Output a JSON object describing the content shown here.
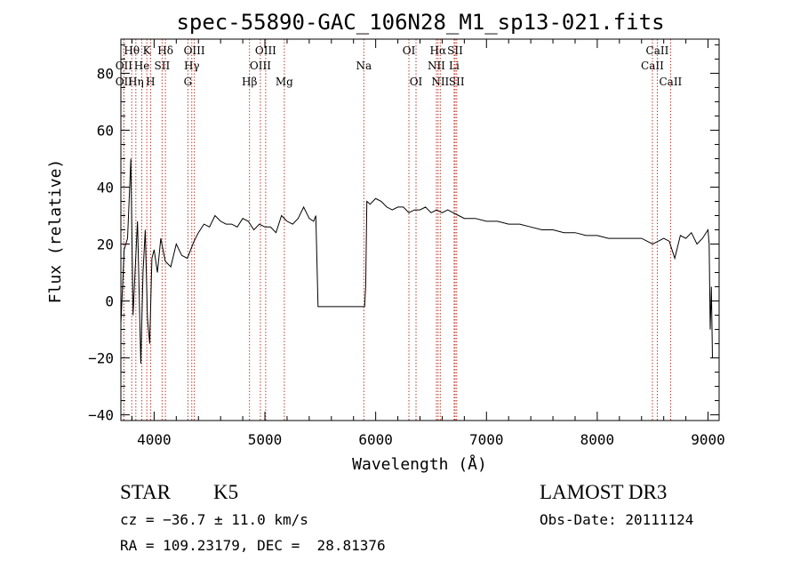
{
  "chart_data": {
    "type": "line",
    "title": "spec-55890-GAC_106N28_M1_sp13-021.fits",
    "xlabel": "Wavelength (Å)",
    "ylabel": "Flux (relative)",
    "xlim": [
      3700,
      9100
    ],
    "ylim": [
      -42,
      92
    ],
    "x_ticks": [
      4000,
      5000,
      6000,
      7000,
      8000,
      9000
    ],
    "x_tick_labels": [
      "4000",
      "5000",
      "6000",
      "7000",
      "8000",
      "9000"
    ],
    "y_ticks": [
      -40,
      -20,
      0,
      20,
      40,
      60,
      80
    ],
    "y_tick_labels": [
      "−40",
      "−20",
      "0",
      "20",
      "40",
      "60",
      "80"
    ],
    "series": [
      {
        "name": "flux",
        "x": [
          3700,
          3730,
          3760,
          3790,
          3810,
          3830,
          3850,
          3880,
          3900,
          3920,
          3940,
          3960,
          3980,
          4000,
          4030,
          4060,
          4100,
          4150,
          4200,
          4250,
          4300,
          4330,
          4360,
          4400,
          4450,
          4500,
          4550,
          4600,
          4650,
          4700,
          4750,
          4800,
          4850,
          4900,
          4950,
          5000,
          5050,
          5100,
          5150,
          5200,
          5250,
          5300,
          5350,
          5400,
          5440,
          5460,
          5480,
          5900,
          5910,
          5920,
          5950,
          6000,
          6050,
          6100,
          6150,
          6200,
          6250,
          6300,
          6350,
          6400,
          6450,
          6500,
          6550,
          6600,
          6650,
          6700,
          6750,
          6800,
          6900,
          7000,
          7100,
          7200,
          7300,
          7400,
          7500,
          7600,
          7700,
          7800,
          7900,
          8000,
          8100,
          8200,
          8300,
          8400,
          8450,
          8500,
          8550,
          8600,
          8650,
          8700,
          8750,
          8800,
          8850,
          8900,
          8950,
          9000,
          9010,
          9020,
          9030,
          9040
        ],
        "values": [
          -8,
          18,
          22,
          50,
          -5,
          12,
          28,
          -22,
          10,
          25,
          -6,
          -15,
          15,
          18,
          10,
          22,
          14,
          12,
          20,
          16,
          15,
          18,
          21,
          24,
          27,
          26,
          30,
          28,
          27,
          27,
          26,
          29,
          28,
          25,
          27,
          26,
          26,
          24,
          30,
          28,
          27,
          29,
          33,
          29,
          28,
          30,
          -2,
          -2,
          5,
          35,
          34,
          36,
          35,
          33,
          32,
          33,
          33,
          31,
          32,
          32,
          33,
          31,
          32,
          31,
          32,
          31,
          30,
          29,
          29,
          28,
          28,
          27,
          27,
          26,
          25,
          25,
          24,
          24,
          23,
          23,
          22,
          22,
          22,
          22,
          21,
          20,
          21,
          22,
          21,
          15,
          23,
          22,
          24,
          20,
          22,
          25,
          20,
          -10,
          5,
          -20
        ]
      }
    ],
    "lines": [
      {
        "name": "Hθ",
        "x": 3798,
        "row": 1
      },
      {
        "name": "Hη",
        "x": 3835,
        "row": 3
      },
      {
        "name": "OII",
        "x": 3727,
        "row": 2
      },
      {
        "name": "OII",
        "x": 3727,
        "row": 3
      },
      {
        "name": "He",
        "x": 3889,
        "row": 2
      },
      {
        "name": "K",
        "x": 3934,
        "row": 1
      },
      {
        "name": "H",
        "x": 3968,
        "row": 3
      },
      {
        "name": "SII",
        "x": 4072,
        "row": 2
      },
      {
        "name": "Hδ",
        "x": 4102,
        "row": 1
      },
      {
        "name": "OIII",
        "x": 4363,
        "row": 1
      },
      {
        "name": "Hγ",
        "x": 4340,
        "row": 2
      },
      {
        "name": "G",
        "x": 4305,
        "row": 3
      },
      {
        "name": "Hβ",
        "x": 4861,
        "row": 3
      },
      {
        "name": "OIII",
        "x": 4959,
        "row": 2
      },
      {
        "name": "OIII",
        "x": 5007,
        "row": 1
      },
      {
        "name": "Mg",
        "x": 5175,
        "row": 3
      },
      {
        "name": "Na",
        "x": 5893,
        "row": 2
      },
      {
        "name": "OI",
        "x": 6300,
        "row": 1
      },
      {
        "name": "OI",
        "x": 6364,
        "row": 3
      },
      {
        "name": "NII",
        "x": 6548,
        "row": 2
      },
      {
        "name": "Hα",
        "x": 6563,
        "row": 1
      },
      {
        "name": "NII",
        "x": 6583,
        "row": 3
      },
      {
        "name": "Li",
        "x": 6708,
        "row": 2
      },
      {
        "name": "SII",
        "x": 6717,
        "row": 1
      },
      {
        "name": "SII",
        "x": 6731,
        "row": 3
      },
      {
        "name": "CaII",
        "x": 8498,
        "row": 2
      },
      {
        "name": "CaII",
        "x": 8542,
        "row": 1
      },
      {
        "name": "CaII",
        "x": 8662,
        "row": 3
      }
    ]
  },
  "footer": {
    "class": "STAR",
    "subclass": "K5",
    "survey": "LAMOST DR3",
    "cz": "cz = −36.7 ± 11.0 km/s",
    "obs_date": "Obs-Date: 20111124",
    "coords": "RA = 109.23179, DEC =  28.81376"
  }
}
